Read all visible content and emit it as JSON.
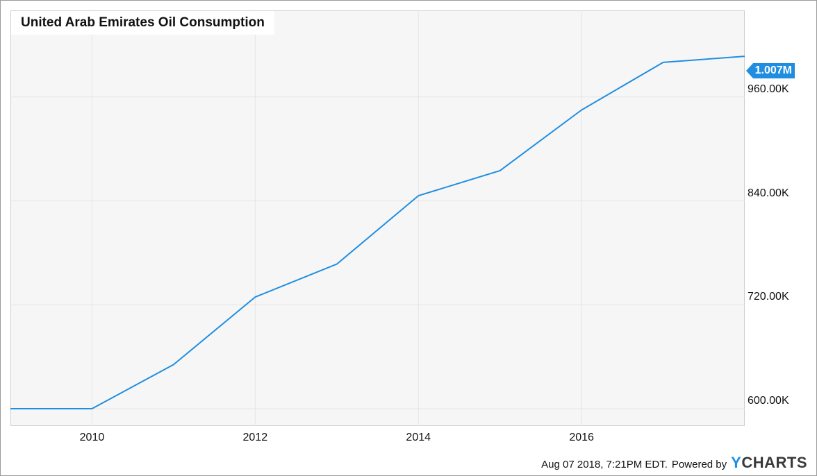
{
  "chart_data": {
    "type": "line",
    "title": "United Arab Emirates Oil Consumption",
    "x": [
      2009,
      2010,
      2011,
      2012,
      2013,
      2014,
      2015,
      2016,
      2017,
      2018
    ],
    "series": [
      {
        "values": [
          600000,
          600000,
          651000,
          729000,
          767000,
          846000,
          875000,
          945000,
          1000000,
          1007000
        ]
      }
    ],
    "xticks": [
      "2010",
      "2012",
      "2014",
      "2016"
    ],
    "xtick_values": [
      2010,
      2012,
      2014,
      2016
    ],
    "yticks": [
      "600.00K",
      "720.00K",
      "840.00K",
      "960.00K"
    ],
    "ytick_values": [
      600000,
      720000,
      840000,
      960000
    ],
    "xlim": [
      2009,
      2018
    ],
    "ylim": [
      580000,
      1060000
    ],
    "last_value_label": "1.007M",
    "line_color": "#1f8ee0",
    "grid": true
  },
  "footer": {
    "timestamp": "Aug 07 2018, 7:21PM EDT.",
    "powered_by": "Powered by",
    "logo_y": "Y",
    "logo_rest": "CHARTS"
  }
}
